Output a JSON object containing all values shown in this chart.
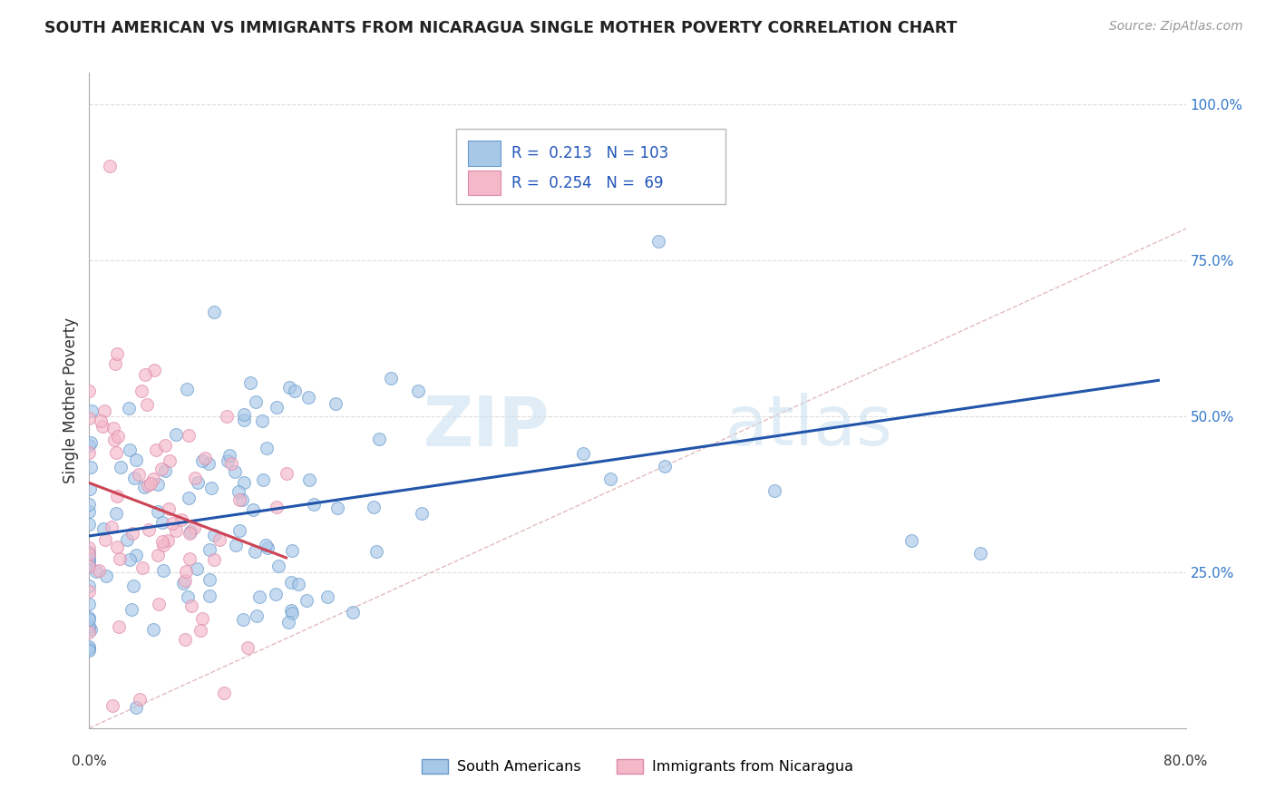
{
  "title": "SOUTH AMERICAN VS IMMIGRANTS FROM NICARAGUA SINGLE MOTHER POVERTY CORRELATION CHART",
  "source": "Source: ZipAtlas.com",
  "ylabel": "Single Mother Poverty",
  "ytick_vals": [
    0.25,
    0.5,
    0.75,
    1.0
  ],
  "ytick_labels": [
    "25.0%",
    "50.0%",
    "75.0%",
    "100.0%"
  ],
  "xlim": [
    0.0,
    0.8
  ],
  "ylim": [
    0.0,
    1.05
  ],
  "blue_color": "#a8c8e8",
  "pink_color": "#f4b8c8",
  "blue_edge_color": "#6699cc",
  "pink_edge_color": "#dd88aa",
  "blue_line_color": "#2255aa",
  "pink_line_color": "#cc4455",
  "diag_color": "#ddaaaa",
  "watermark_zip": "ZIP",
  "watermark_atlas": "atlas",
  "blue_r": 0.213,
  "pink_r": 0.254,
  "blue_n": 103,
  "pink_n": 69,
  "grid_color": "#dddddd",
  "axis_color": "#aaaaaa"
}
